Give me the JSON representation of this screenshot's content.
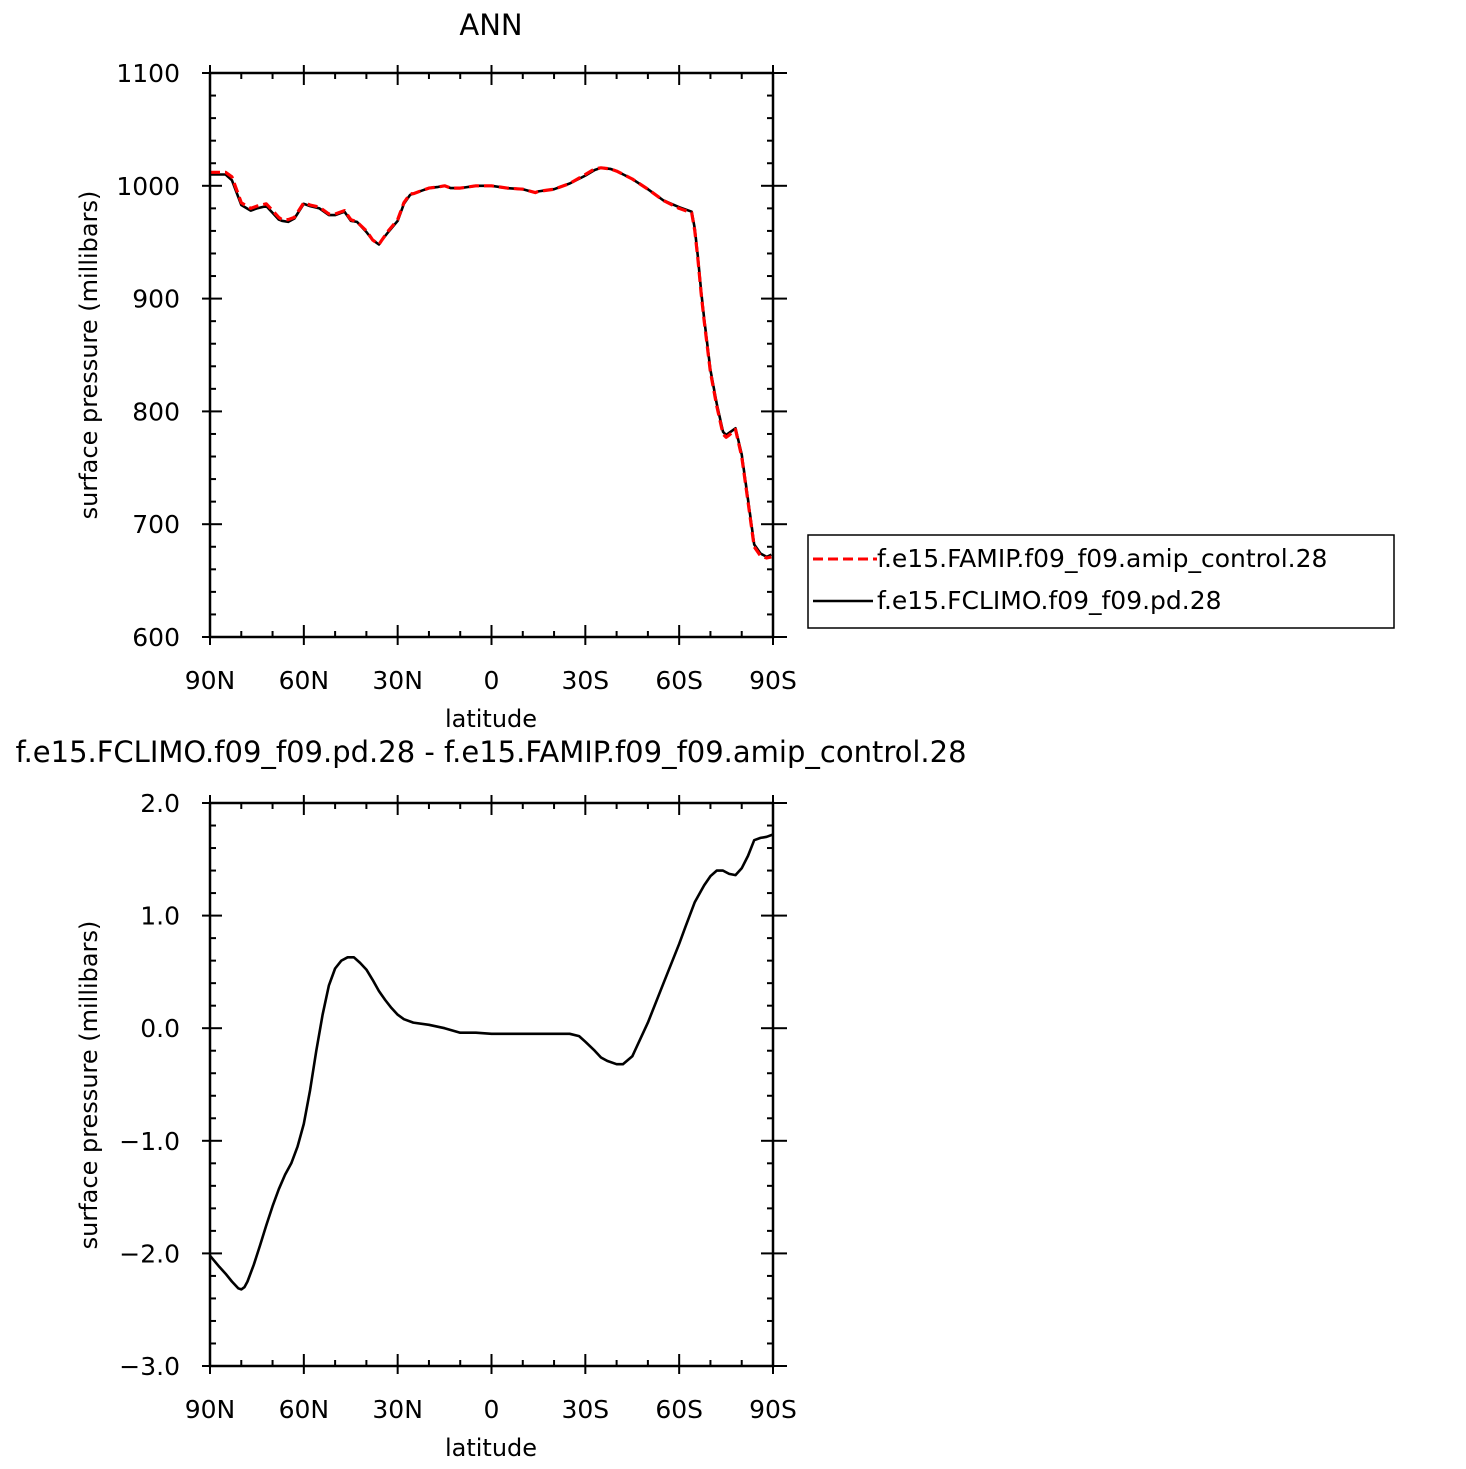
{
  "chart_data": [
    {
      "type": "line",
      "title": "ANN",
      "xlabel": "latitude",
      "ylabel": "surface pressure (millibars)",
      "xlim": [
        90,
        -90
      ],
      "ylim": [
        600,
        1100
      ],
      "xticks": [
        90,
        60,
        30,
        0,
        -30,
        -60,
        -90
      ],
      "xticklabels": [
        "90N",
        "60N",
        "30N",
        "0",
        "30S",
        "60S",
        "90S"
      ],
      "yticks": [
        600,
        700,
        800,
        900,
        1000,
        1100
      ],
      "yticklabels": [
        "600",
        "700",
        "800",
        "900",
        "1000",
        "1100"
      ],
      "legend_position": "right",
      "series": [
        {
          "name": "f.e15.FAMIP.f09_f09.amip_control.28",
          "color": "#ff0000",
          "style": "dashed",
          "x": [
            90,
            85,
            83,
            80,
            77,
            75,
            72,
            70,
            68,
            67,
            65,
            63,
            60,
            58,
            55,
            52,
            50,
            47,
            45,
            43,
            40,
            38,
            36,
            35,
            33,
            30,
            28,
            26,
            25,
            22,
            20,
            17,
            15,
            13,
            10,
            5,
            0,
            -5,
            -10,
            -14,
            -15,
            -20,
            -25,
            -30,
            -33,
            -35,
            -38,
            -40,
            -45,
            -50,
            -55,
            -60,
            -64,
            -65,
            -66,
            -67,
            -68,
            -70,
            -72,
            -74,
            -75,
            -76,
            -78,
            -80,
            -82,
            -84,
            -86,
            -88,
            -89.5
          ],
          "y": [
            1012,
            1012,
            1008,
            985,
            980,
            982,
            984,
            978,
            972,
            970,
            970,
            972,
            985,
            983,
            981,
            975,
            975,
            978,
            970,
            968,
            960,
            952,
            948,
            952,
            960,
            970,
            985,
            993,
            993,
            996,
            998,
            999,
            1000,
            998,
            998,
            1000,
            1000,
            998,
            997,
            994,
            995,
            997,
            1002,
            1010,
            1015,
            1016,
            1015,
            1013,
            1006,
            997,
            987,
            980,
            976,
            960,
            935,
            905,
            880,
            835,
            805,
            780,
            777,
            779,
            784,
            760,
            720,
            680,
            672,
            670,
            671
          ]
        },
        {
          "name": "f.e15.FCLIMO.f09_f09.pd.28",
          "color": "#000000",
          "style": "solid",
          "x": [
            90,
            85,
            83,
            80,
            77,
            75,
            72,
            70,
            68,
            67,
            65,
            63,
            60,
            58,
            55,
            52,
            50,
            47,
            45,
            43,
            40,
            38,
            36,
            35,
            33,
            30,
            28,
            26,
            25,
            22,
            20,
            17,
            15,
            13,
            10,
            5,
            0,
            -5,
            -10,
            -14,
            -15,
            -20,
            -25,
            -30,
            -33,
            -35,
            -38,
            -40,
            -45,
            -50,
            -55,
            -60,
            -64,
            -65,
            -66,
            -67,
            -68,
            -70,
            -72,
            -74,
            -75,
            -76,
            -78,
            -80,
            -82,
            -84,
            -86,
            -88,
            -89.5
          ],
          "y": [
            1010,
            1010,
            1005,
            983,
            978,
            980,
            982,
            976,
            970,
            969,
            968,
            971,
            984,
            982,
            980,
            974,
            974,
            977,
            969,
            968,
            959,
            952,
            948,
            952,
            959,
            969,
            984,
            992,
            993,
            996,
            998,
            999,
            1000,
            998,
            998,
            1000,
            1000,
            998,
            997,
            994,
            995,
            997,
            1002,
            1009,
            1014,
            1016,
            1015,
            1013,
            1006,
            997,
            987,
            981,
            977,
            962,
            937,
            907,
            882,
            837,
            807,
            782,
            779,
            781,
            785,
            762,
            722,
            682,
            674,
            671,
            673
          ]
        }
      ]
    },
    {
      "type": "line",
      "title": "f.e15.FCLIMO.f09_f09.pd.28 - f.e15.FAMIP.f09_f09.amip_control.28",
      "xlabel": "latitude",
      "ylabel": "surface pressure (millibars)",
      "xlim": [
        90,
        -90
      ],
      "ylim": [
        -3.0,
        2.0
      ],
      "xticks": [
        90,
        60,
        30,
        0,
        -30,
        -60,
        -90
      ],
      "xticklabels": [
        "90N",
        "60N",
        "30N",
        "0",
        "30S",
        "60S",
        "90S"
      ],
      "yticks": [
        -3.0,
        -2.0,
        -1.0,
        0.0,
        1.0,
        2.0
      ],
      "yticklabels": [
        "−3.0",
        "−2.0",
        "−1.0",
        "0.0",
        "1.0",
        "2.0"
      ],
      "series": [
        {
          "color": "#000000",
          "style": "solid",
          "x": [
            90,
            87,
            85,
            83,
            81,
            80,
            79,
            78,
            76,
            74,
            72,
            70,
            68,
            66,
            64,
            62,
            60,
            58,
            56,
            54,
            52,
            50,
            48,
            46,
            44,
            42,
            40,
            38,
            36,
            34,
            32,
            30,
            28,
            25,
            20,
            15,
            10,
            5,
            0,
            -5,
            -10,
            -15,
            -20,
            -25,
            -28,
            -30,
            -33,
            -35,
            -37,
            -40,
            -42,
            -45,
            -50,
            -55,
            -60,
            -62,
            -65,
            -68,
            -70,
            -72,
            -74,
            -76,
            -78,
            -80,
            -82,
            -84,
            -86,
            -88,
            -90
          ],
          "y": [
            -2.02,
            -2.12,
            -2.18,
            -2.25,
            -2.31,
            -2.32,
            -2.3,
            -2.25,
            -2.1,
            -1.93,
            -1.75,
            -1.58,
            -1.43,
            -1.3,
            -1.2,
            -1.05,
            -0.85,
            -0.55,
            -0.2,
            0.12,
            0.38,
            0.53,
            0.6,
            0.63,
            0.63,
            0.58,
            0.52,
            0.43,
            0.33,
            0.25,
            0.18,
            0.12,
            0.08,
            0.05,
            0.03,
            0.0,
            -0.04,
            -0.04,
            -0.05,
            -0.05,
            -0.05,
            -0.05,
            -0.05,
            -0.05,
            -0.07,
            -0.12,
            -0.2,
            -0.26,
            -0.29,
            -0.32,
            -0.32,
            -0.25,
            0.05,
            0.4,
            0.75,
            0.9,
            1.12,
            1.27,
            1.35,
            1.4,
            1.4,
            1.37,
            1.36,
            1.42,
            1.53,
            1.67,
            1.69,
            1.7,
            1.72
          ]
        }
      ]
    }
  ]
}
